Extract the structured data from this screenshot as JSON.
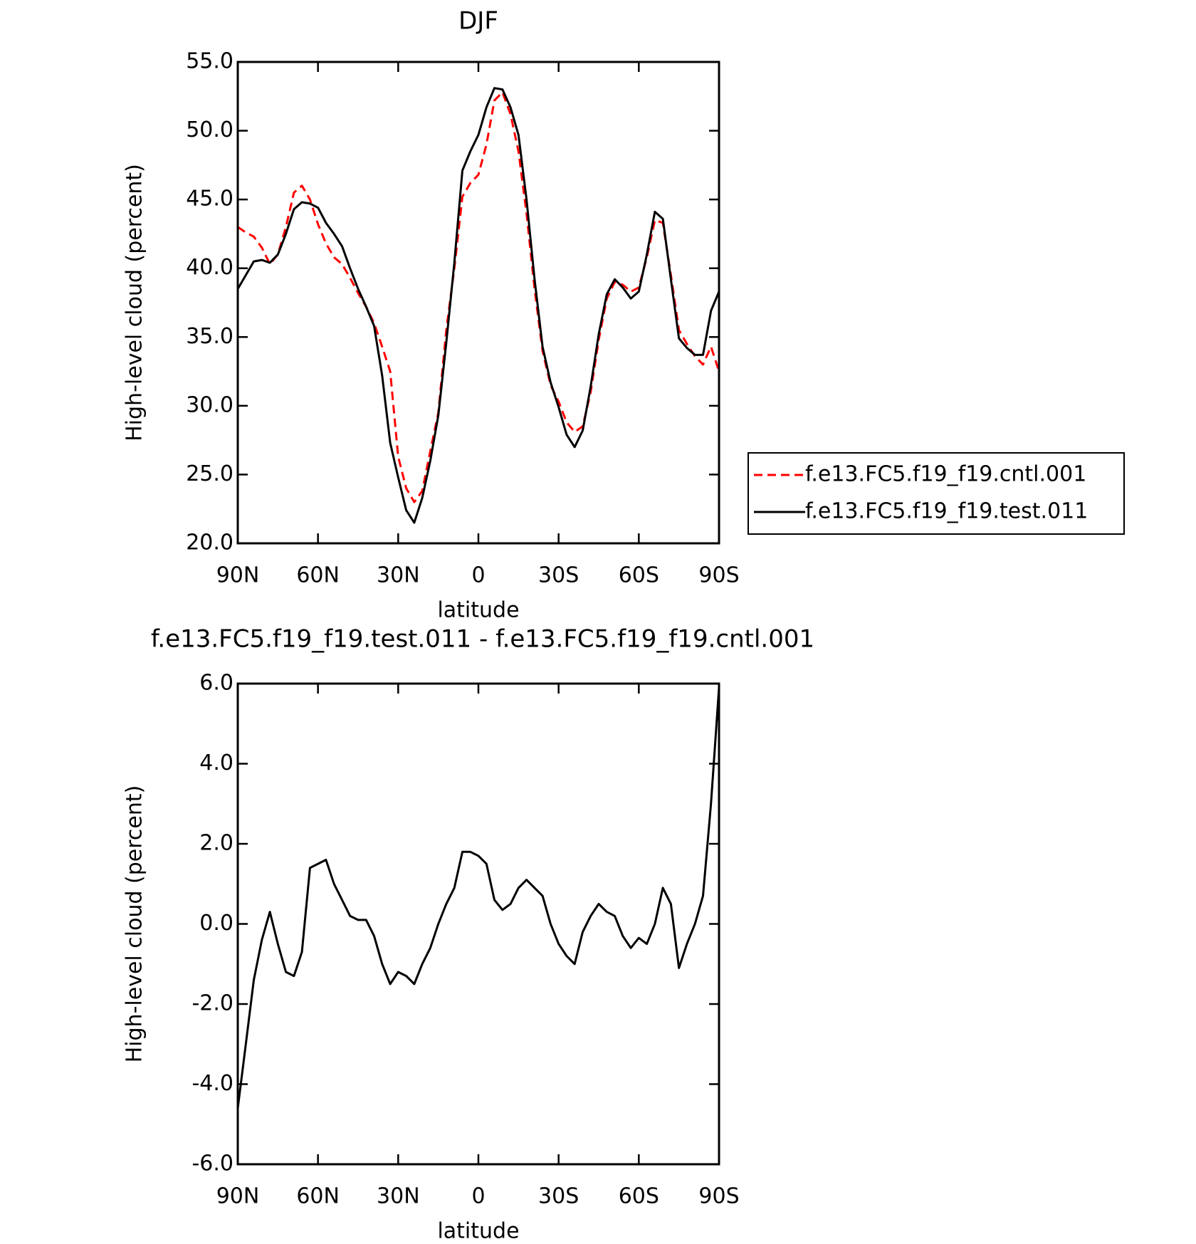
{
  "chart_data": [
    {
      "type": "line",
      "title": "DJF",
      "xlabel": "latitude",
      "ylabel": "High-level cloud (percent)",
      "x": [
        90,
        87,
        84,
        81,
        78,
        75,
        72,
        69,
        66,
        63,
        60,
        57,
        54,
        51,
        48,
        45,
        42,
        39,
        36,
        33,
        30,
        27,
        24,
        21,
        18,
        15,
        12,
        9,
        6,
        3,
        0,
        -3,
        -6,
        -9,
        -12,
        -15,
        -18,
        -21,
        -24,
        -27,
        -30,
        -33,
        -36,
        -39,
        -42,
        -45,
        -48,
        -51,
        -54,
        -57,
        -60,
        -63,
        -66,
        -69,
        -72,
        -75,
        -78,
        -81,
        -84,
        -87,
        -90
      ],
      "xlim": [
        90,
        -90
      ],
      "xticks": [
        {
          "value": 90,
          "label": "90N"
        },
        {
          "value": 60,
          "label": "60N"
        },
        {
          "value": 30,
          "label": "30N"
        },
        0,
        {
          "value": -30,
          "label": "30S"
        },
        {
          "value": -60,
          "label": "60S"
        },
        {
          "value": -90,
          "label": "90S"
        }
      ],
      "ylim": [
        20,
        55
      ],
      "yticks": [
        {
          "value": 20,
          "label": "20.0"
        },
        {
          "value": 25,
          "label": "25.0"
        },
        {
          "value": 30,
          "label": "30.0"
        },
        {
          "value": 35,
          "label": "35.0"
        },
        {
          "value": 40,
          "label": "40.0"
        },
        {
          "value": 45,
          "label": "45.0"
        },
        {
          "value": 50,
          "label": "50.0"
        },
        {
          "value": 55,
          "label": "55.0"
        }
      ],
      "legend": "outside right",
      "series": [
        {
          "name": "f.e13.FC5.f19_f19.cntl.001",
          "color": "#ff0000",
          "dash": true,
          "values": [
            43.0,
            42.6,
            42.3,
            41.5,
            40.3,
            41.0,
            43.0,
            45.5,
            46.0,
            45.0,
            43.2,
            41.8,
            40.8,
            40.3,
            39.3,
            38.2,
            37.2,
            36.0,
            34.3,
            32.5,
            26.3,
            24.0,
            23.0,
            23.8,
            26.7,
            29.5,
            35.5,
            40.0,
            45.2,
            46.2,
            46.8,
            49.0,
            52.2,
            52.8,
            51.2,
            48.5,
            44.0,
            38.5,
            34.0,
            31.5,
            30.3,
            28.8,
            28.1,
            28.5,
            31.0,
            34.8,
            37.8,
            39.0,
            38.8,
            38.3,
            38.6,
            40.8,
            43.5,
            43.3,
            39.5,
            35.5,
            34.5,
            33.6,
            33.0,
            34.3,
            32.5
          ]
        },
        {
          "name": "f.e13.FC5.f19_f19.test.011",
          "color": "#000000",
          "dash": false,
          "values": [
            38.5,
            39.5,
            40.5,
            40.6,
            40.4,
            41.0,
            42.5,
            44.3,
            44.8,
            44.7,
            44.4,
            43.3,
            42.5,
            41.6,
            40.0,
            38.5,
            37.2,
            35.8,
            32.2,
            27.3,
            24.8,
            22.4,
            21.5,
            23.3,
            26.0,
            29.3,
            34.6,
            40.4,
            47.1,
            48.5,
            49.7,
            51.7,
            53.1,
            53.0,
            51.7,
            49.7,
            45.0,
            39.2,
            34.3,
            31.7,
            29.9,
            27.9,
            27.0,
            28.2,
            31.4,
            35.2,
            38.1,
            39.2,
            38.6,
            37.8,
            38.3,
            41.0,
            44.1,
            43.6,
            39.2,
            34.9,
            34.2,
            33.7,
            33.7,
            36.9,
            38.3
          ]
        }
      ]
    },
    {
      "type": "line",
      "title": "f.e13.FC5.f19_f19.test.011 - f.e13.FC5.f19_f19.cntl.001",
      "xlabel": "latitude",
      "ylabel": "High-level cloud (percent)",
      "x": [
        90,
        87,
        84,
        81,
        78,
        75,
        72,
        69,
        66,
        63,
        60,
        57,
        54,
        51,
        48,
        45,
        42,
        39,
        36,
        33,
        30,
        27,
        24,
        21,
        18,
        15,
        12,
        9,
        6,
        3,
        0,
        -3,
        -6,
        -9,
        -12,
        -15,
        -18,
        -21,
        -24,
        -27,
        -30,
        -33,
        -36,
        -39,
        -42,
        -45,
        -48,
        -51,
        -54,
        -57,
        -60,
        -63,
        -66,
        -69,
        -72,
        -75,
        -78,
        -81,
        -84,
        -87,
        -90
      ],
      "xlim": [
        90,
        -90
      ],
      "xticks": [
        {
          "value": 90,
          "label": "90N"
        },
        {
          "value": 60,
          "label": "60N"
        },
        {
          "value": 30,
          "label": "30N"
        },
        0,
        {
          "value": -30,
          "label": "30S"
        },
        {
          "value": -60,
          "label": "60S"
        },
        {
          "value": -90,
          "label": "90S"
        }
      ],
      "ylim": [
        -6,
        6
      ],
      "yticks": [
        {
          "value": -6,
          "label": "-6.0"
        },
        {
          "value": -4,
          "label": "-4.0"
        },
        {
          "value": -2,
          "label": "-2.0"
        },
        {
          "value": 0,
          "label": "0.0"
        },
        {
          "value": 2,
          "label": "2.0"
        },
        {
          "value": 4,
          "label": "4.0"
        },
        {
          "value": 6,
          "label": "6.0"
        }
      ],
      "series": [
        {
          "color": "#000000",
          "dash": false,
          "values": [
            -4.6,
            -3.0,
            -1.4,
            -0.4,
            0.3,
            -0.5,
            -1.2,
            -1.3,
            -0.7,
            1.4,
            1.5,
            1.6,
            1.0,
            0.6,
            0.2,
            0.1,
            0.1,
            -0.3,
            -1.0,
            -1.5,
            -1.2,
            -1.3,
            -1.5,
            -1.0,
            -0.6,
            0.0,
            0.5,
            0.9,
            1.8,
            1.8,
            1.7,
            1.5,
            0.6,
            0.35,
            0.5,
            0.9,
            1.1,
            0.9,
            0.7,
            0.0,
            -0.5,
            -0.8,
            -1.0,
            -0.2,
            0.2,
            0.5,
            0.3,
            0.2,
            -0.3,
            -0.6,
            -0.35,
            -0.5,
            0.0,
            0.9,
            0.5,
            -1.1,
            -0.5,
            0.0,
            0.7,
            3.0,
            5.9
          ]
        }
      ]
    }
  ]
}
